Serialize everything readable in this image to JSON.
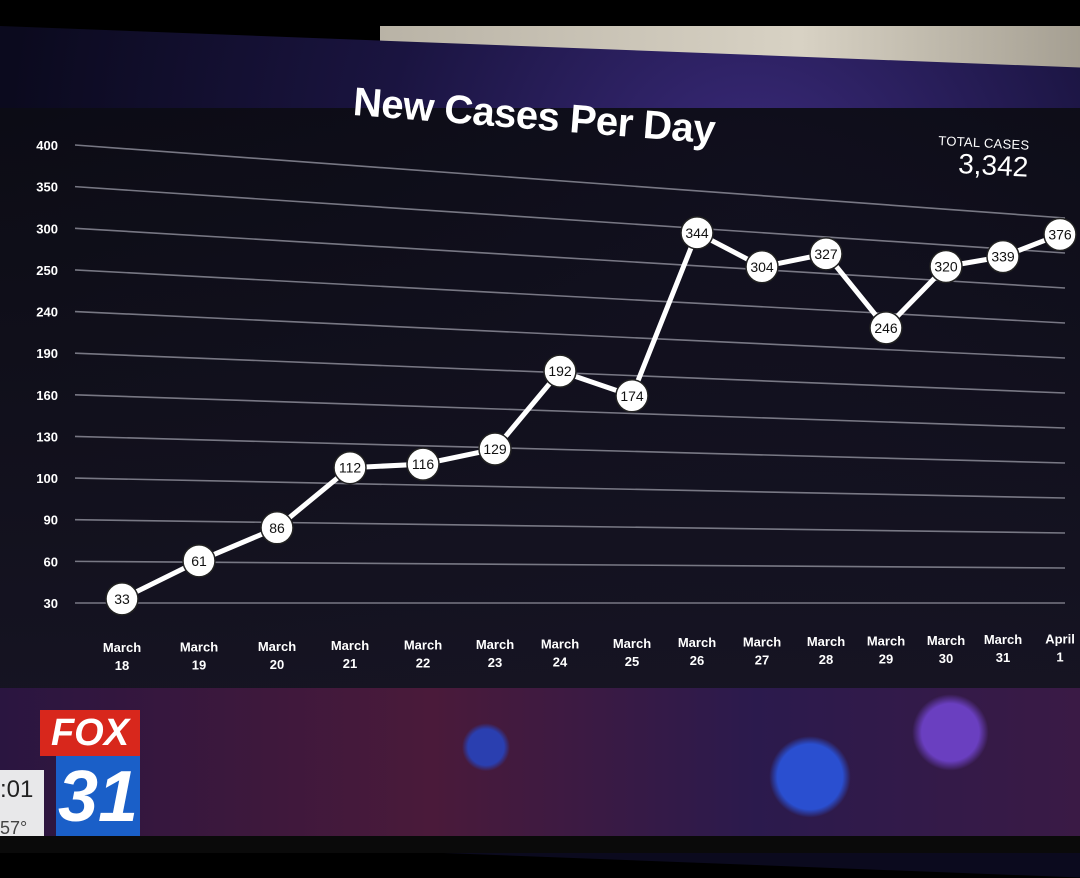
{
  "broadcast": {
    "station_name": "FOX",
    "station_number": "31",
    "clock_time": ":01",
    "temperature": "57°"
  },
  "chart_data": {
    "type": "line",
    "title": "New Cases Per Day",
    "total_label": "TOTAL CASES",
    "total_value": "3,342",
    "xlabel": "",
    "ylabel": "",
    "y_tick_labels": [
      "400",
      "350",
      "300",
      "250",
      "240",
      "190",
      "160",
      "130",
      "100",
      "90",
      "60",
      "30"
    ],
    "categories": [
      [
        "March",
        "18"
      ],
      [
        "March",
        "19"
      ],
      [
        "March",
        "20"
      ],
      [
        "March",
        "21"
      ],
      [
        "March",
        "22"
      ],
      [
        "March",
        "23"
      ],
      [
        "March",
        "24"
      ],
      [
        "March",
        "25"
      ],
      [
        "March",
        "26"
      ],
      [
        "March",
        "27"
      ],
      [
        "March",
        "28"
      ],
      [
        "March",
        "29"
      ],
      [
        "March",
        "30"
      ],
      [
        "March",
        "31"
      ],
      [
        "April",
        "1"
      ]
    ],
    "series": [
      {
        "values": [
          33,
          61,
          86,
          112,
          116,
          129,
          192,
          174,
          344,
          304,
          327,
          246,
          320,
          339,
          376
        ],
        "labels": [
          "33",
          "61",
          "86",
          "112",
          "116",
          "129",
          "192",
          "174",
          "344",
          "304",
          "327",
          "246",
          "320",
          "339",
          "376"
        ]
      }
    ],
    "grid": true,
    "colors": {
      "line": "#ffffff",
      "marker_fill": "#ffffff",
      "marker_text": "#111111",
      "grid": "#8a8a96"
    }
  }
}
